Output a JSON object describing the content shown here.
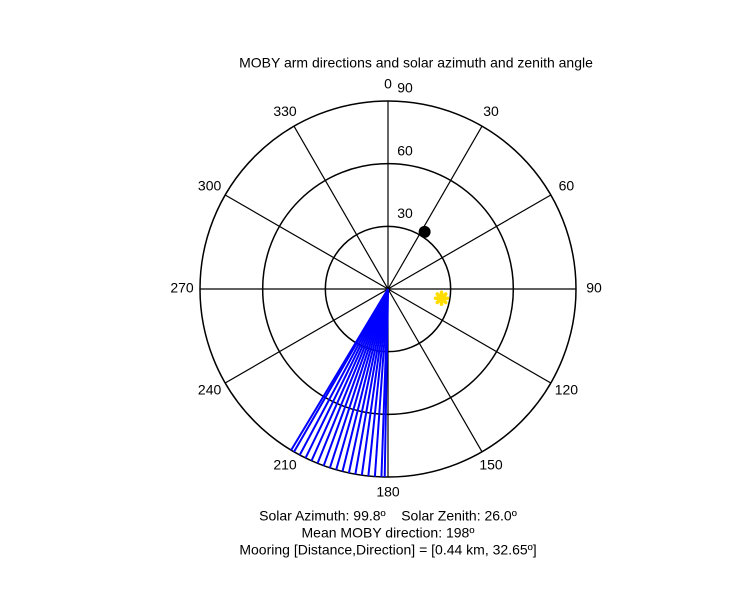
{
  "chart_data": {
    "type": "polar",
    "title": "MOBY arm directions and solar azimuth and zenith angle",
    "rlim": [
      0,
      90
    ],
    "rticks": [
      30,
      60,
      90
    ],
    "thetaticks": [
      0,
      30,
      60,
      90,
      120,
      150,
      180,
      210,
      240,
      270,
      300,
      330
    ],
    "theta_zero": "top",
    "theta_direction": "clockwise",
    "series": [
      {
        "color": "#0000ff",
        "marker": "line",
        "theta": [
          181,
          182,
          184,
          186,
          188,
          190,
          192,
          194,
          196,
          198,
          200,
          202,
          204,
          206,
          208,
          210,
          211
        ],
        "r": [
          90,
          90,
          90,
          90,
          90,
          90,
          90,
          90,
          90,
          90,
          90,
          90,
          90,
          90,
          90,
          90,
          90
        ]
      },
      {
        "color": "#000000",
        "marker": "dot",
        "theta": [
          32.65
        ],
        "r": [
          32.5
        ]
      },
      {
        "color": "#ffdd00",
        "marker": "star",
        "theta": [
          99.8
        ],
        "r": [
          26.0
        ]
      }
    ],
    "annotations": [
      "Solar Azimuth: 99.8º    Solar Zenith: 26.0º",
      "Mean MOBY direction: 198º",
      "Mooring [Distance,Direction] = [0.44 km, 32.65º]"
    ]
  }
}
